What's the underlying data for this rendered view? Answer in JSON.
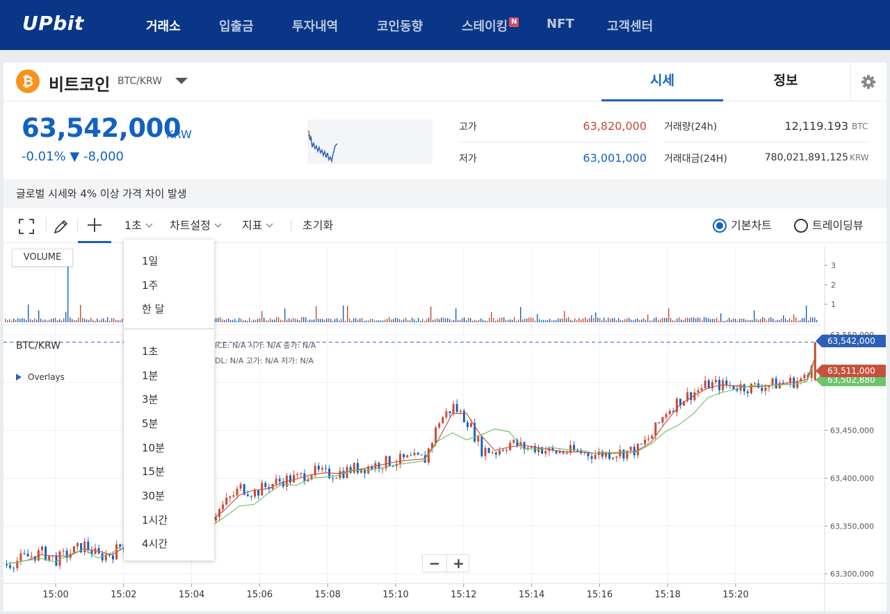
{
  "nav": {
    "logo": "UPbit",
    "items": [
      {
        "label": "거래소",
        "active": true
      },
      {
        "label": "입출금",
        "active": false
      },
      {
        "label": "투자내역",
        "active": false
      },
      {
        "label": "코인동향",
        "active": false
      },
      {
        "label": "스테이킹",
        "active": false,
        "badge": "N"
      },
      {
        "label": "NFT",
        "active": false
      },
      {
        "label": "고객센터",
        "active": false
      }
    ]
  },
  "coin": {
    "icon_glyph": "₿",
    "name": "비트코인",
    "pair": "BTC/KRW",
    "price": "63,542,000",
    "currency": "KRW",
    "change": "-0.01% ▼ -8,000"
  },
  "tabs": {
    "sise": "시세",
    "info": "정보"
  },
  "stats": {
    "high_label": "고가",
    "high_value": "63,820,000",
    "low_label": "저가",
    "low_value": "63,001,000",
    "volume_label": "거래량(24h)",
    "volume_value": "12,119.193",
    "volume_unit": "BTC",
    "amount_label": "거래대금(24H)",
    "amount_value": "780,021,891,125",
    "amount_unit": "KRW"
  },
  "notice": "글로벌 시세와 4% 이상 가격 차이 발생",
  "toolbar": {
    "interval": "1초",
    "chart_settings": "차트설정",
    "indicators": "지표",
    "reset": "초기화",
    "chart_basic": "기본차트",
    "chart_tradingview": "트레이딩뷰"
  },
  "interval_menu": {
    "group1": [
      "1일",
      "1주",
      "한 달"
    ],
    "group2": [
      "1초",
      "1분",
      "3분",
      "5분",
      "10분",
      "15분",
      "30분",
      "1시간",
      "4시간"
    ]
  },
  "chart": {
    "volume_badge": "VOLUME",
    "symbol": "BTC/KRW",
    "overlays": "Overlays",
    "ohlc_row1": "ICE:  N/A    시가:  N/A    종가:  N/A",
    "ohlc_row2": "DL:   N/A    고가:  N/A    저가:  N/A",
    "zoom_out": "−",
    "zoom_in": "+",
    "price_tags": {
      "current": "63,542,000",
      "red": "63,511,000",
      "green": "63,502,880"
    }
  },
  "colors": {
    "brand": "#093687",
    "accent": "#1261c4",
    "up": "#c84a31",
    "down": "#1261c4",
    "ma_short": "#d24f45",
    "ma_long": "#6cc56a"
  },
  "chart_data": {
    "type": "candlestick",
    "x_ticks": [
      "15:00",
      "15:02",
      "15:04",
      "15:06",
      "15:08",
      "15:10",
      "15:12",
      "15:14",
      "15:16",
      "15:18",
      "15:20"
    ],
    "y_ticks": [
      "63,300,000",
      "63,350,000",
      "63,400,000",
      "63,450,000",
      "63,500,000",
      "63,550,000"
    ],
    "volume_ticks": [
      "1",
      "2",
      "3"
    ],
    "ylim": [
      63290000,
      63560000
    ],
    "current_price": 63542000,
    "close_path": [
      [
        0,
        63310000
      ],
      [
        6,
        63318000
      ],
      [
        10,
        63322000
      ],
      [
        14,
        63315000
      ],
      [
        18,
        63322000
      ],
      [
        22,
        63330000
      ],
      [
        26,
        63318000
      ],
      [
        30,
        63322000
      ],
      [
        34,
        63335000
      ],
      [
        38,
        63328000
      ],
      [
        42,
        63338000
      ],
      [
        46,
        63340000
      ],
      [
        50,
        63345000
      ],
      [
        54,
        63352000
      ],
      [
        58,
        63360000
      ],
      [
        62,
        63375000
      ],
      [
        66,
        63390000
      ],
      [
        70,
        63385000
      ],
      [
        74,
        63393000
      ],
      [
        78,
        63398000
      ],
      [
        82,
        63400000
      ],
      [
        86,
        63407000
      ],
      [
        90,
        63404000
      ],
      [
        94,
        63406000
      ],
      [
        98,
        63410000
      ],
      [
        102,
        63412000
      ],
      [
        106,
        63416000
      ],
      [
        110,
        63418000
      ],
      [
        114,
        63420000
      ],
      [
        118,
        63420000
      ],
      [
        122,
        63460000
      ],
      [
        126,
        63475000
      ],
      [
        130,
        63460000
      ],
      [
        134,
        63430000
      ],
      [
        138,
        63428000
      ],
      [
        142,
        63437000
      ],
      [
        146,
        63432000
      ],
      [
        150,
        63432000
      ],
      [
        154,
        63427000
      ],
      [
        158,
        63428000
      ],
      [
        162,
        63427000
      ],
      [
        166,
        63425000
      ],
      [
        170,
        63426000
      ],
      [
        174,
        63427000
      ],
      [
        178,
        63430000
      ],
      [
        182,
        63445000
      ],
      [
        186,
        63470000
      ],
      [
        190,
        63482000
      ],
      [
        194,
        63490000
      ],
      [
        198,
        63498000
      ],
      [
        202,
        63497000
      ],
      [
        206,
        63496000
      ],
      [
        210,
        63495000
      ],
      [
        214,
        63497000
      ],
      [
        218,
        63499000
      ],
      [
        222,
        63501000
      ],
      [
        226,
        63505000
      ],
      [
        228,
        63542000
      ]
    ]
  }
}
